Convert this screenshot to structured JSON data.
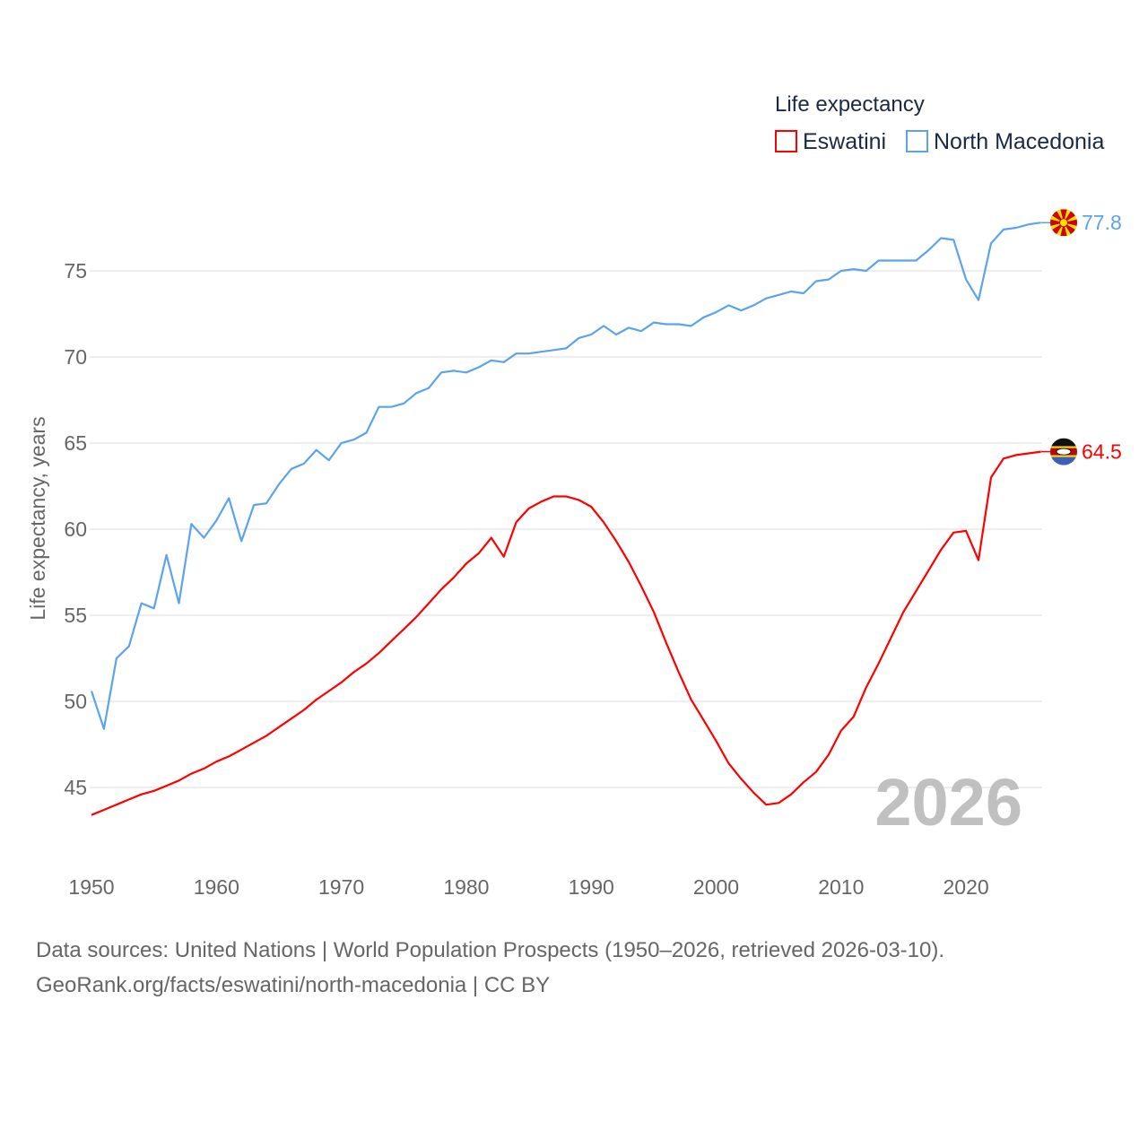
{
  "chart_data": {
    "type": "line",
    "title": "",
    "legend_title": "Life expectancy",
    "legend_placement": "top-right",
    "xlabel": "",
    "ylabel": "Life expectancy, years",
    "xlim": [
      1950,
      2026
    ],
    "ylim": [
      42.5,
      79
    ],
    "x_ticks": [
      1950,
      1960,
      1970,
      1980,
      1990,
      2000,
      2010,
      2020
    ],
    "y_ticks": [
      45,
      50,
      55,
      60,
      65,
      70,
      75
    ],
    "grid": true,
    "watermark_year": "2026",
    "x": [
      1950,
      1951,
      1952,
      1953,
      1954,
      1955,
      1956,
      1957,
      1958,
      1959,
      1960,
      1961,
      1962,
      1963,
      1964,
      1965,
      1966,
      1967,
      1968,
      1969,
      1970,
      1971,
      1972,
      1973,
      1974,
      1975,
      1976,
      1977,
      1978,
      1979,
      1980,
      1981,
      1982,
      1983,
      1984,
      1985,
      1986,
      1987,
      1988,
      1989,
      1990,
      1991,
      1992,
      1993,
      1994,
      1995,
      1996,
      1997,
      1998,
      1999,
      2000,
      2001,
      2002,
      2003,
      2004,
      2005,
      2006,
      2007,
      2008,
      2009,
      2010,
      2011,
      2012,
      2013,
      2014,
      2015,
      2016,
      2017,
      2018,
      2019,
      2020,
      2021,
      2022,
      2023,
      2024,
      2025,
      2026
    ],
    "series": [
      {
        "name": "Eswatini",
        "color": "#ff0000",
        "end_label": "64.5",
        "values": [
          43.4,
          43.7,
          44.0,
          44.3,
          44.6,
          44.8,
          45.1,
          45.4,
          45.8,
          46.1,
          46.5,
          46.8,
          47.2,
          47.6,
          48.0,
          48.5,
          49.0,
          49.5,
          50.1,
          50.6,
          51.1,
          51.7,
          52.2,
          52.8,
          53.5,
          54.2,
          54.9,
          55.7,
          56.5,
          57.2,
          58.0,
          58.6,
          59.5,
          58.4,
          60.4,
          61.2,
          61.6,
          61.9,
          61.9,
          61.7,
          61.3,
          60.4,
          59.3,
          58.1,
          56.7,
          55.2,
          53.4,
          51.7,
          50.1,
          48.9,
          47.7,
          46.4,
          45.5,
          44.7,
          44.0,
          44.1,
          44.6,
          45.3,
          45.9,
          46.9,
          48.3,
          49.1,
          50.8,
          52.2,
          53.7,
          55.2,
          56.4,
          57.6,
          58.8,
          59.8,
          59.9,
          58.2,
          63.0,
          64.1,
          64.3,
          64.4,
          64.5
        ]
      },
      {
        "name": "North Macedonia",
        "color": "#5ba4ec",
        "end_label": "77.8",
        "values": [
          50.6,
          48.4,
          52.5,
          53.2,
          55.7,
          55.4,
          58.5,
          55.7,
          60.3,
          59.5,
          60.5,
          61.8,
          59.3,
          61.4,
          61.5,
          62.6,
          63.5,
          63.8,
          64.6,
          64.0,
          65.0,
          65.2,
          65.6,
          67.1,
          67.1,
          67.3,
          67.9,
          68.2,
          69.1,
          69.2,
          69.1,
          69.4,
          69.8,
          69.7,
          70.2,
          70.2,
          70.3,
          70.4,
          70.5,
          71.1,
          71.3,
          71.8,
          71.3,
          71.7,
          71.5,
          72.0,
          71.9,
          71.9,
          71.8,
          72.3,
          72.6,
          73.0,
          72.7,
          73.0,
          73.4,
          73.6,
          73.8,
          73.7,
          74.4,
          74.5,
          75.0,
          75.1,
          75.0,
          75.6,
          75.6,
          75.6,
          75.6,
          76.2,
          76.9,
          76.8,
          74.5,
          73.3,
          76.6,
          77.4,
          77.5,
          77.7,
          77.8
        ]
      }
    ]
  },
  "footer": {
    "sources": "Data sources: United Nations | World Population Prospects (1950–2026, retrieved 2026-03-10).",
    "link": "GeoRank.org/facts/eswatini/north-macedonia | CC BY"
  },
  "colors": {
    "grid": "#e8e8e8",
    "axis_text": "#666666",
    "legend_text": "#1a2a44",
    "watermark": "#c0c0c0"
  }
}
